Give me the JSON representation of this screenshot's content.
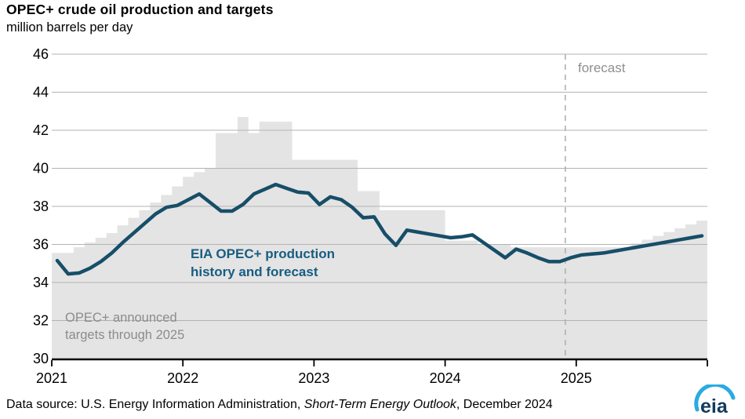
{
  "page": {
    "title": "OPEC+ crude oil production and targets",
    "subtitle": "million barrels per day"
  },
  "annotations": {
    "forecast_label": "forecast",
    "production_label_line1": "EIA OPEC+ production",
    "production_label_line2": "history and forecast",
    "targets_label_line1": "OPEC+ announced",
    "targets_label_line2": "targets through 2025"
  },
  "footer": {
    "prefix": "Data source: U.S. Energy Information Administration, ",
    "italic": "Short-Term Energy Outlook",
    "suffix": ", December 2024",
    "logo_text": "eia"
  },
  "colors": {
    "production_line": "#174e68",
    "production_label": "#175d82",
    "target_area": "#e4e4e4",
    "gridline": "#b3b3b3",
    "forecast_dash": "#b0b0b0",
    "axis": "#000000",
    "gray_text": "#8c8c8c",
    "logo_blue": "#29aae2",
    "logo_dark": "#123a5c"
  },
  "chart_data": {
    "type": "line",
    "title": "OPEC+ crude oil production and targets",
    "ylabel": "million barrels per day",
    "ylim": [
      30,
      46
    ],
    "yticks": [
      30,
      32,
      34,
      36,
      38,
      40,
      42,
      44,
      46
    ],
    "xtick_labels": [
      "2021",
      "2022",
      "2023",
      "2024",
      "2025"
    ],
    "x_start": "2021-01",
    "x_interval": "month",
    "forecast_start": "2024-12",
    "grid": true,
    "legend_position": "in-chart annotations",
    "x_months": [
      "2021-01",
      "2021-02",
      "2021-03",
      "2021-04",
      "2021-05",
      "2021-06",
      "2021-07",
      "2021-08",
      "2021-09",
      "2021-10",
      "2021-11",
      "2021-12",
      "2022-01",
      "2022-02",
      "2022-03",
      "2022-04",
      "2022-05",
      "2022-06",
      "2022-07",
      "2022-08",
      "2022-09",
      "2022-10",
      "2022-11",
      "2022-12",
      "2023-01",
      "2023-02",
      "2023-03",
      "2023-04",
      "2023-05",
      "2023-06",
      "2023-07",
      "2023-08",
      "2023-09",
      "2023-10",
      "2023-11",
      "2023-12",
      "2024-01",
      "2024-02",
      "2024-03",
      "2024-04",
      "2024-05",
      "2024-06",
      "2024-07",
      "2024-08",
      "2024-09",
      "2024-10",
      "2024-11",
      "2024-12",
      "2025-01",
      "2025-02",
      "2025-03",
      "2025-04",
      "2025-05",
      "2025-06",
      "2025-07",
      "2025-08",
      "2025-09",
      "2025-10",
      "2025-11",
      "2025-12"
    ],
    "series": [
      {
        "name": "OPEC+ announced targets through 2025",
        "style": "step-area",
        "color": "#e4e4e4",
        "values": [
          35.55,
          35.55,
          35.85,
          36.1,
          36.35,
          36.6,
          37.0,
          37.4,
          37.8,
          38.2,
          38.6,
          39.05,
          39.55,
          39.8,
          40.0,
          41.85,
          41.85,
          42.7,
          41.85,
          42.45,
          42.45,
          42.45,
          40.45,
          40.45,
          40.45,
          40.45,
          40.45,
          40.45,
          38.8,
          38.8,
          37.8,
          37.8,
          37.8,
          37.8,
          37.8,
          37.8,
          36.2,
          36.2,
          36.2,
          36.0,
          36.0,
          36.0,
          35.85,
          35.85,
          35.85,
          35.85,
          35.85,
          35.85,
          35.85,
          35.85,
          35.85,
          35.85,
          35.85,
          36.05,
          36.25,
          36.45,
          36.65,
          36.85,
          37.05,
          37.25
        ]
      },
      {
        "name": "EIA OPEC+ production history and forecast",
        "style": "line",
        "color": "#174e68",
        "values": [
          35.15,
          34.45,
          34.5,
          34.75,
          35.1,
          35.55,
          36.1,
          36.6,
          37.1,
          37.6,
          37.95,
          38.05,
          38.35,
          38.65,
          38.2,
          37.75,
          37.75,
          38.1,
          38.65,
          38.9,
          39.15,
          38.95,
          38.75,
          38.7,
          38.1,
          38.5,
          38.35,
          37.95,
          37.4,
          37.45,
          36.55,
          35.95,
          36.75,
          36.65,
          36.55,
          36.45,
          36.35,
          36.4,
          36.5,
          36.1,
          35.7,
          35.3,
          35.75,
          35.55,
          35.3,
          35.1,
          35.1,
          35.3,
          35.45,
          35.5,
          35.55,
          35.65,
          35.75,
          35.85,
          35.95,
          36.05,
          36.15,
          36.25,
          36.35,
          36.45
        ]
      }
    ]
  }
}
